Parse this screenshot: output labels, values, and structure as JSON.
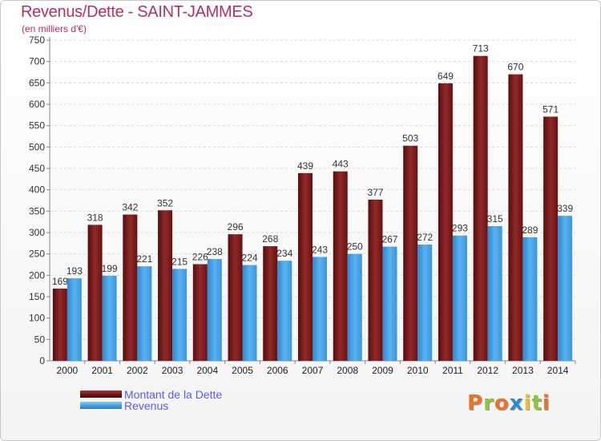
{
  "header": {
    "title": "Revenus/Dette - SAINT-JAMMES",
    "subtitle": "(en milliers d'€)"
  },
  "chart_data": {
    "type": "bar",
    "categories": [
      "2000",
      "2001",
      "2002",
      "2003",
      "2004",
      "2005",
      "2006",
      "2007",
      "2008",
      "2009",
      "2010",
      "2011",
      "2012",
      "2013",
      "2014"
    ],
    "series": [
      {
        "name": "Montant de la Dette",
        "color": "#7a1515",
        "values": [
          169,
          318,
          342,
          352,
          226,
          296,
          268,
          439,
          443,
          377,
          503,
          649,
          713,
          670,
          571
        ]
      },
      {
        "name": "Revenus",
        "color": "#4aa3e8",
        "values": [
          193,
          199,
          221,
          215,
          238,
          224,
          234,
          243,
          250,
          267,
          272,
          293,
          315,
          289,
          339
        ]
      }
    ],
    "ylim": [
      0,
      750
    ],
    "yticks": [
      0,
      50,
      100,
      150,
      200,
      250,
      300,
      350,
      400,
      450,
      500,
      550,
      600,
      650,
      700,
      750
    ],
    "grid": true
  },
  "legend": {
    "items": [
      {
        "label": "Montant de la Dette",
        "color": "#7a1515"
      },
      {
        "label": "Revenus",
        "color": "#4aa3e8"
      }
    ]
  },
  "logo": {
    "letters": [
      "P",
      "r",
      "o",
      "x",
      "i",
      "t",
      "i"
    ],
    "colors": [
      "#e8742a",
      "#8cc63f",
      "#e8742a",
      "#2a8ad6",
      "#e8c22a",
      "#8cc63f",
      "#e8742a"
    ]
  }
}
